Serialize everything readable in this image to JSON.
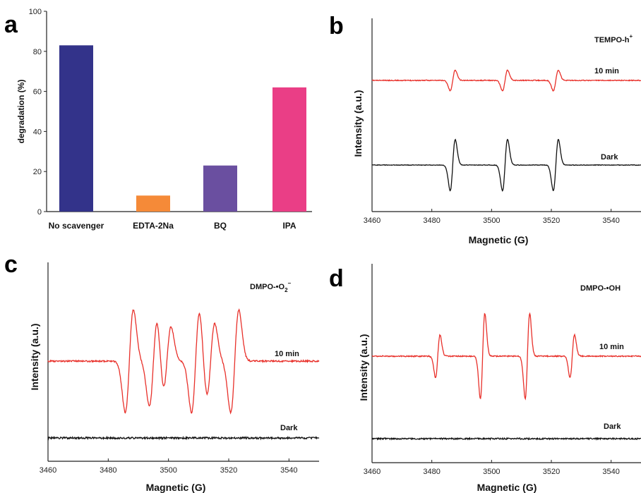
{
  "chart_data": [
    {
      "panel": "a",
      "type": "bar",
      "categories": [
        "No scavenger",
        "EDTA-2Na",
        "BQ",
        "IPA"
      ],
      "values": [
        83,
        8,
        23,
        62
      ],
      "colors": [
        "#33338a",
        "#f58a38",
        "#6a4fa0",
        "#ea3e86"
      ],
      "xlabel": "",
      "ylabel": "degradation (%)",
      "ylim": [
        0,
        100
      ],
      "yticks": [
        "0",
        "20",
        "40",
        "60",
        "80",
        "100"
      ],
      "grid": false
    },
    {
      "panel": "b",
      "type": "line",
      "xlabel": "Magnetic (G)",
      "ylabel": "Intensity (a.u.)",
      "xlim": [
        3460,
        3550
      ],
      "xticks": [
        "3460",
        "3480",
        "3500",
        "3520",
        "3540"
      ],
      "title": "TEMPO-h",
      "title_sup": "+",
      "pattern": "triplet",
      "peaks_G": [
        3487,
        3504.5,
        3521.5
      ],
      "series": [
        {
          "name": "10 min",
          "color": "#e8302a",
          "relative_amplitude": 0.4
        },
        {
          "name": "Dark",
          "color": "#111111",
          "relative_amplitude": 1.0
        }
      ]
    },
    {
      "panel": "c",
      "type": "line",
      "xlabel": "Magnetic (G)",
      "ylabel": "Intensity (a.u.)",
      "xlim": [
        3460,
        3550
      ],
      "xticks": [
        "3460",
        "3480",
        "3500",
        "3520",
        "3540"
      ],
      "title": "DMPO-•O",
      "title_sub": "2",
      "title_sup": "−",
      "pattern": "sextet",
      "peaks_G": [
        3487,
        3495,
        3499.5,
        3509,
        3514,
        3522
      ],
      "series": [
        {
          "name": "10 min",
          "color": "#e8302a",
          "relative_amplitude": 1.0
        },
        {
          "name": "Dark",
          "color": "#111111",
          "relative_amplitude": 0.0
        }
      ]
    },
    {
      "panel": "d",
      "type": "line",
      "xlabel": "Magnetic (G)",
      "ylabel": "Intensity (a.u.)",
      "xlim": [
        3460,
        3550
      ],
      "xticks": [
        "3460",
        "3480",
        "3500",
        "3520",
        "3540"
      ],
      "title": "DMPO-•OH",
      "pattern": "quartet 1:2:2:1",
      "peaks_G": [
        3482,
        3497,
        3512,
        3527
      ],
      "series": [
        {
          "name": "10 min",
          "color": "#e8302a",
          "relative_amplitude": 1.0
        },
        {
          "name": "Dark",
          "color": "#111111",
          "relative_amplitude": 0.0
        }
      ]
    }
  ]
}
